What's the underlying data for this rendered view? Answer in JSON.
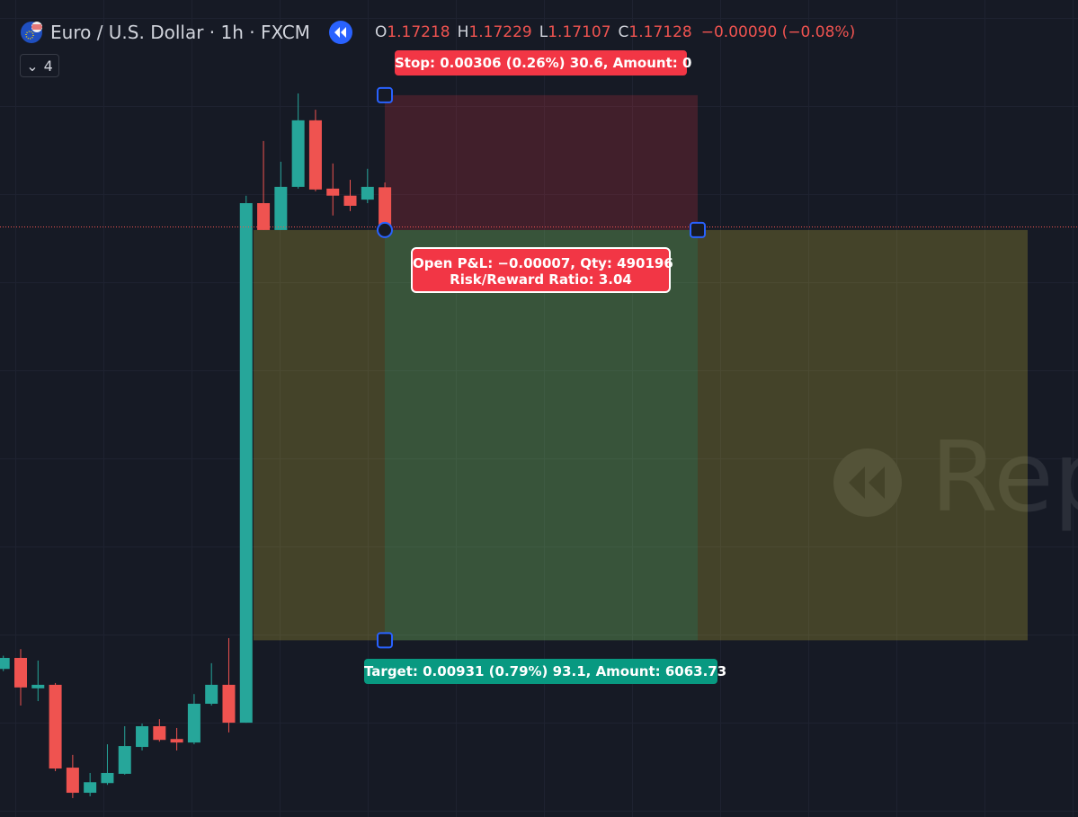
{
  "chart_data": {
    "type": "candlestick",
    "title": "Euro / U.S. Dollar · 1h · FXCM",
    "indicators": "4",
    "ohlc_letters": [
      "O",
      "H",
      "L",
      "C"
    ],
    "change": "−0.00090 (−0.08%)",
    "ylim": [
      1.15789,
      1.17643
    ],
    "up_color": "#26a69a",
    "down_color": "#ef5350",
    "candles": [
      {
        "open": 1.16125,
        "high": 1.16155,
        "low": 1.1612,
        "close": 1.1615
      },
      {
        "open": 1.1615,
        "high": 1.1617,
        "low": 1.16042,
        "close": 1.16083
      },
      {
        "open": 1.16081,
        "high": 1.16144,
        "low": 1.16052,
        "close": 1.16089
      },
      {
        "open": 1.16089,
        "high": 1.16093,
        "low": 1.15893,
        "close": 1.15899
      },
      {
        "open": 1.15901,
        "high": 1.1593,
        "low": 1.15832,
        "close": 1.15844
      },
      {
        "open": 1.15844,
        "high": 1.15889,
        "low": 1.15836,
        "close": 1.15868
      },
      {
        "open": 1.15866,
        "high": 1.15954,
        "low": 1.15862,
        "close": 1.15889
      },
      {
        "open": 1.15887,
        "high": 1.15995,
        "low": 1.15885,
        "close": 1.1595
      },
      {
        "open": 1.15948,
        "high": 1.16001,
        "low": 1.1594,
        "close": 1.15995
      },
      {
        "open": 1.15995,
        "high": 1.16011,
        "low": 1.1596,
        "close": 1.15964
      },
      {
        "open": 1.15966,
        "high": 1.15991,
        "low": 1.1594,
        "close": 1.15958
      },
      {
        "open": 1.15958,
        "high": 1.16068,
        "low": 1.15954,
        "close": 1.16046
      },
      {
        "open": 1.16046,
        "high": 1.16138,
        "low": 1.16042,
        "close": 1.16089
      },
      {
        "open": 1.16089,
        "high": 1.16195,
        "low": 1.15981,
        "close": 1.16003
      },
      {
        "open": 1.16003,
        "high": 1.17199,
        "low": 1.16003,
        "close": 1.17182
      },
      {
        "open": 1.17182,
        "high": 1.17323,
        "low": 1.17121,
        "close": 1.17121
      },
      {
        "open": 1.17121,
        "high": 1.17276,
        "low": 1.17121,
        "close": 1.17219
      },
      {
        "open": 1.17219,
        "high": 1.17431,
        "low": 1.17215,
        "close": 1.1737
      },
      {
        "open": 1.1737,
        "high": 1.17394,
        "low": 1.17209,
        "close": 1.17213
      },
      {
        "open": 1.17215,
        "high": 1.17272,
        "low": 1.17154,
        "close": 1.17199
      },
      {
        "open": 1.17199,
        "high": 1.17235,
        "low": 1.17164,
        "close": 1.17176
      },
      {
        "open": 1.1719,
        "high": 1.1726,
        "low": 1.17182,
        "close": 1.17219
      },
      {
        "open": 1.17218,
        "high": 1.17229,
        "low": 1.17107,
        "close": 1.17128
      }
    ],
    "position": {
      "entry": 1.17121,
      "stop": 1.17427,
      "target": 1.1619,
      "stop_label": "Stop: 0.00306 (0.26%) 30.6, Amount: 0",
      "pnl_label": "Open P&L: −0.00007, Qty: 490196",
      "rr_label": "Risk/Reward Ratio: 3.04",
      "target_label": "Target: 0.00931 (0.79%) 93.1, Amount: 6063.73"
    },
    "watermark": "Rep"
  }
}
